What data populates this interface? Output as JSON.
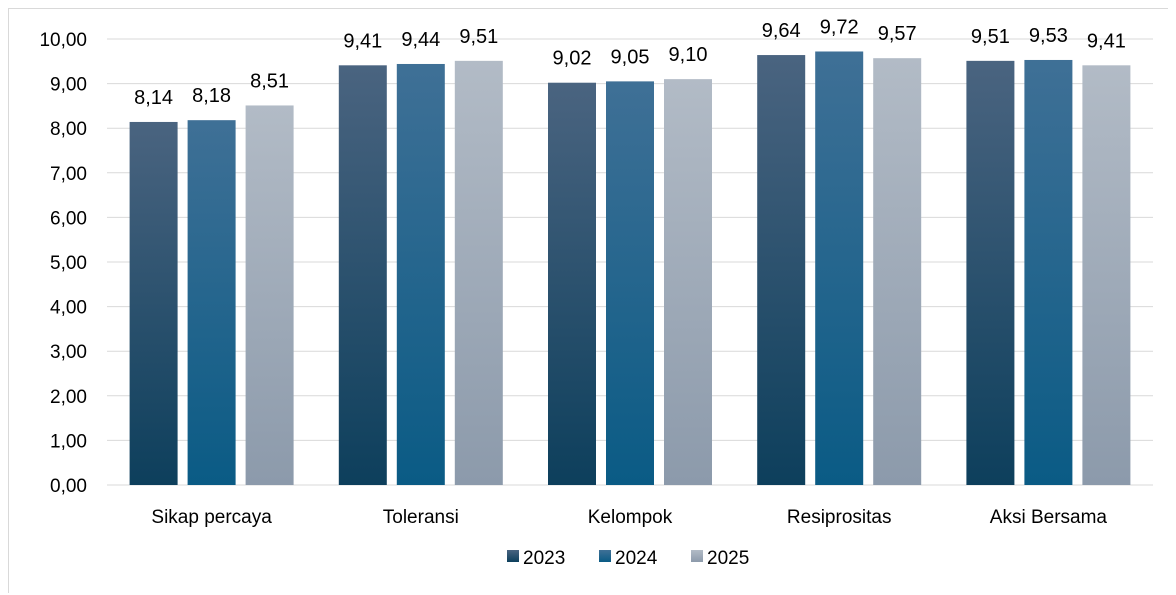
{
  "chart_data": {
    "type": "bar",
    "title": "",
    "xlabel": "",
    "ylabel": "",
    "categories": [
      "Sikap percaya",
      "Toleransi",
      "Kelompok",
      "Resiprositas",
      "Aksi Bersama"
    ],
    "series": [
      {
        "name": "2023",
        "values": [
          8.14,
          9.41,
          9.02,
          9.64,
          9.51
        ],
        "labels": [
          "8,14",
          "9,41",
          "9,02",
          "9,64",
          "9,51"
        ],
        "color_top": "#4a6480",
        "color_bottom": "#0d3f5c"
      },
      {
        "name": "2024",
        "values": [
          8.18,
          9.44,
          9.05,
          9.72,
          9.53
        ],
        "labels": [
          "8,18",
          "9,44",
          "9,05",
          "9,72",
          "9,53"
        ],
        "color_top": "#3f7096",
        "color_bottom": "#0a5b85"
      },
      {
        "name": "2025",
        "values": [
          8.51,
          9.51,
          9.1,
          9.57,
          9.41
        ],
        "labels": [
          "8,51",
          "9,51",
          "9,10",
          "9,57",
          "9,41"
        ],
        "color_top": "#b2bbc6",
        "color_bottom": "#8c9aab"
      }
    ],
    "ylim": [
      0,
      10
    ],
    "yticks": [
      0,
      1,
      2,
      3,
      4,
      5,
      6,
      7,
      8,
      9,
      10
    ],
    "ytick_labels": [
      "0,00",
      "1,00",
      "2,00",
      "3,00",
      "4,00",
      "5,00",
      "6,00",
      "7,00",
      "8,00",
      "9,00",
      "10,00"
    ],
    "grid": true,
    "legend_position": "bottom"
  }
}
